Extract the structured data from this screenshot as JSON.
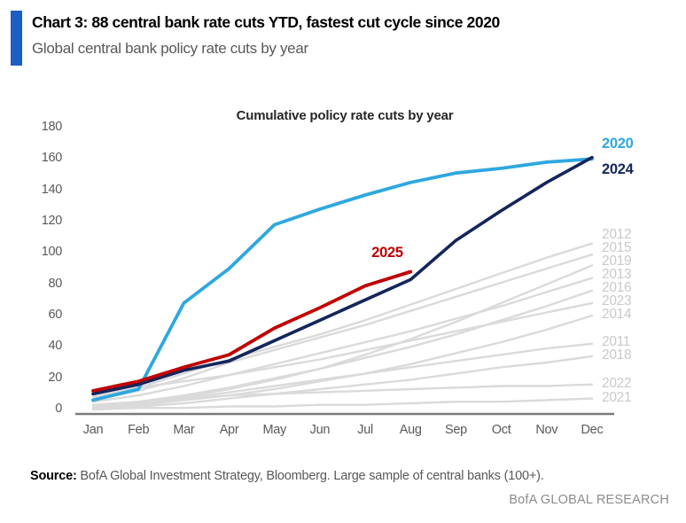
{
  "header": {
    "title": "Chart 3: 88 central bank rate cuts YTD, fastest cut cycle since 2020",
    "subtitle": "Global central bank policy rate cuts by year",
    "accent_color": "#1b5ec4"
  },
  "chart_data": {
    "type": "line",
    "title": "Cumulative policy rate cuts by year",
    "xlabel": "",
    "ylabel": "",
    "x_categories": [
      "Jan",
      "Feb",
      "Mar",
      "Apr",
      "May",
      "Jun",
      "Jul",
      "Aug",
      "Sep",
      "Oct",
      "Nov",
      "Dec"
    ],
    "ylim": [
      0,
      180
    ],
    "y_ticks": [
      0,
      20,
      40,
      60,
      80,
      100,
      120,
      140,
      160,
      180
    ],
    "grid": false,
    "legend_position": "line-end-labels-right",
    "colors": {
      "gray_series": "#dadada",
      "gray_labels": "#c9c9c9",
      "axis_line": "#7a7a7a",
      "axis_text": "#595959"
    },
    "series": [
      {
        "name": "2020",
        "color": "#2ea8df",
        "emphasis": true,
        "width": 3.8,
        "label_hint": "right-above",
        "values": [
          6,
          13,
          68,
          90,
          118,
          128,
          137,
          145,
          151,
          154,
          158,
          160
        ]
      },
      {
        "name": "2024",
        "color": "#13265c",
        "emphasis": true,
        "width": 3.6,
        "label_hint": "right-below",
        "values": [
          10,
          16,
          25,
          31,
          44,
          57,
          70,
          83,
          108,
          127,
          145,
          161
        ]
      },
      {
        "name": "2025",
        "color": "#c00000",
        "emphasis": true,
        "width": 3.8,
        "label_hint": "above-line-end",
        "values": [
          12,
          18,
          27,
          35,
          52,
          65,
          79,
          88
        ]
      },
      {
        "name": "2012",
        "color": "#dadada",
        "emphasis": false,
        "width": 2.4,
        "label_hint": "right",
        "values": [
          8,
          14,
          23,
          32,
          40,
          48,
          57,
          67,
          77,
          87,
          97,
          106
        ]
      },
      {
        "name": "2015",
        "color": "#dadada",
        "emphasis": false,
        "width": 2.4,
        "label_hint": "right",
        "values": [
          6,
          12,
          20,
          30,
          38,
          46,
          54,
          63,
          72,
          81,
          90,
          99
        ]
      },
      {
        "name": "2019",
        "color": "#dadada",
        "emphasis": false,
        "width": 2.4,
        "label_hint": "right",
        "values": [
          2,
          4,
          8,
          13,
          19,
          26,
          35,
          45,
          56,
          68,
          80,
          92
        ]
      },
      {
        "name": "2013",
        "color": "#dadada",
        "emphasis": false,
        "width": 2.4,
        "label_hint": "right",
        "values": [
          5,
          9,
          15,
          22,
          29,
          36,
          43,
          50,
          58,
          66,
          75,
          84
        ]
      },
      {
        "name": "2016",
        "color": "#dadada",
        "emphasis": false,
        "width": 2.4,
        "label_hint": "right",
        "values": [
          2,
          5,
          9,
          14,
          20,
          26,
          33,
          40,
          48,
          57,
          66,
          76
        ]
      },
      {
        "name": "2023",
        "color": "#dadada",
        "emphasis": false,
        "width": 2.4,
        "label_hint": "right",
        "values": [
          10,
          14,
          18,
          22,
          27,
          32,
          38,
          44,
          50,
          56,
          62,
          68
        ]
      },
      {
        "name": "2014",
        "color": "#dadada",
        "emphasis": false,
        "width": 2.4,
        "label_hint": "right",
        "values": [
          1,
          3,
          6,
          9,
          13,
          18,
          23,
          29,
          36,
          43,
          51,
          60
        ]
      },
      {
        "name": "2011",
        "color": "#dadada",
        "emphasis": false,
        "width": 2.4,
        "label_hint": "right",
        "values": [
          2,
          4,
          7,
          11,
          15,
          19,
          23,
          27,
          31,
          35,
          39,
          42
        ]
      },
      {
        "name": "2018",
        "color": "#dadada",
        "emphasis": false,
        "width": 2.4,
        "label_hint": "right",
        "values": [
          1,
          2,
          4,
          7,
          10,
          13,
          16,
          19,
          23,
          27,
          30,
          34
        ]
      },
      {
        "name": "2022",
        "color": "#dadada",
        "emphasis": false,
        "width": 2.4,
        "label_hint": "right",
        "values": [
          3,
          5,
          7,
          9,
          10,
          11,
          12,
          13,
          14,
          15,
          15,
          16
        ]
      },
      {
        "name": "2021",
        "color": "#dadada",
        "emphasis": false,
        "width": 2.4,
        "label_hint": "right",
        "values": [
          0,
          1,
          1,
          2,
          2,
          3,
          3,
          4,
          5,
          5,
          6,
          7
        ]
      }
    ]
  },
  "footer": {
    "source_label": "Source:",
    "source_text": " BofA Global Investment Strategy, Bloomberg. Large sample of central banks (100+).",
    "brand": "BofA GLOBAL RESEARCH"
  }
}
